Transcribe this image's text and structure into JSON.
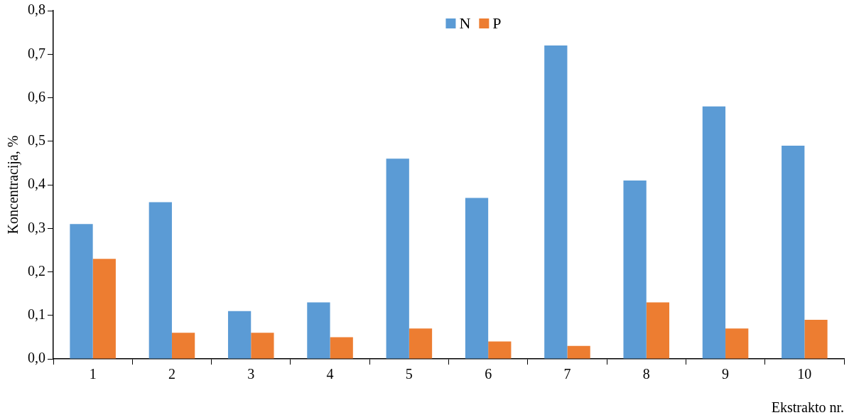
{
  "chart_data": {
    "type": "bar",
    "xlabel": "Ekstrakto nr.",
    "ylabel": "Koncentracija, %",
    "categories": [
      "1",
      "2",
      "3",
      "4",
      "5",
      "6",
      "7",
      "8",
      "9",
      "10"
    ],
    "series": [
      {
        "name": "N",
        "color": "#5b9bd5",
        "values": [
          0.31,
          0.36,
          0.11,
          0.13,
          0.46,
          0.37,
          0.72,
          0.41,
          0.58,
          0.49
        ]
      },
      {
        "name": "P",
        "color": "#ed7d31",
        "values": [
          0.23,
          0.06,
          0.06,
          0.05,
          0.07,
          0.04,
          0.03,
          0.13,
          0.07,
          0.09
        ]
      }
    ],
    "ylim": [
      0,
      0.8
    ],
    "yticks": [
      {
        "value": 0,
        "label": "0,0"
      },
      {
        "value": 0.1,
        "label": "0,1"
      },
      {
        "value": 0.2,
        "label": "0,2"
      },
      {
        "value": 0.3,
        "label": "0,3"
      },
      {
        "value": 0.4,
        "label": "0,4"
      },
      {
        "value": 0.5,
        "label": "0,5"
      },
      {
        "value": 0.6,
        "label": "0,6"
      },
      {
        "value": 0.7,
        "label": "0,7"
      },
      {
        "value": 0.8,
        "label": "0,8"
      }
    ],
    "grid": false,
    "legend": "top"
  }
}
